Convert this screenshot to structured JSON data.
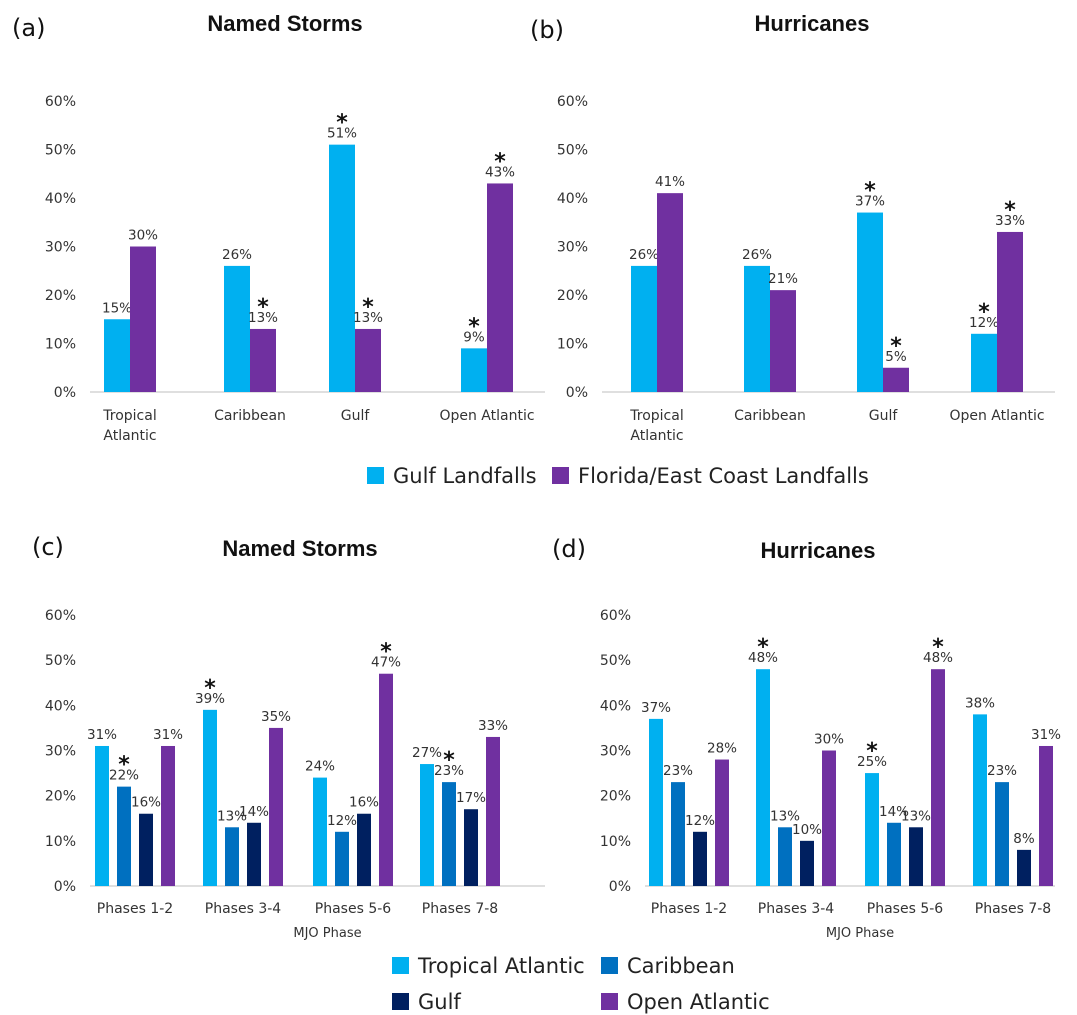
{
  "legend_top": [
    {
      "name": "Gulf Landfalls",
      "color": "#00B0F0"
    },
    {
      "name": "Florida/East Coast Landfalls",
      "color": "#7030A0"
    }
  ],
  "legend_bottom": [
    {
      "name": "Tropical Atlantic",
      "color": "#00B0F0"
    },
    {
      "name": "Caribbean",
      "color": "#0070C0"
    },
    {
      "name": "Gulf",
      "color": "#002060"
    },
    {
      "name": "Open Atlantic",
      "color": "#7030A0"
    }
  ],
  "chart_data": [
    {
      "panel": "(a)",
      "type": "bar",
      "title": "Named Storms",
      "xlabel": "",
      "ylabel": "",
      "ylim": [
        0,
        60
      ],
      "yticks": [
        "0%",
        "10%",
        "20%",
        "30%",
        "40%",
        "50%",
        "60%"
      ],
      "categories": [
        [
          "Tropical",
          "Atlantic"
        ],
        [
          "Caribbean"
        ],
        [
          "Gulf"
        ],
        [
          "Open Atlantic"
        ]
      ],
      "series": [
        {
          "name": "Gulf Landfalls",
          "color": "#00B0F0",
          "values": [
            15,
            26,
            51,
            9
          ],
          "labels": [
            "15%",
            "26%",
            "51%",
            "9%"
          ],
          "stars": [
            false,
            false,
            true,
            true
          ]
        },
        {
          "name": "Florida/East Coast Landfalls",
          "color": "#7030A0",
          "values": [
            30,
            13,
            13,
            43
          ],
          "labels": [
            "30%",
            "13%",
            "13%",
            "43%"
          ],
          "stars": [
            false,
            true,
            true,
            true
          ]
        }
      ]
    },
    {
      "panel": "(b)",
      "type": "bar",
      "title": "Hurricanes",
      "xlabel": "",
      "ylabel": "",
      "ylim": [
        0,
        60
      ],
      "yticks": [
        "0%",
        "10%",
        "20%",
        "30%",
        "40%",
        "50%",
        "60%"
      ],
      "categories": [
        [
          "Tropical",
          "Atlantic"
        ],
        [
          "Caribbean"
        ],
        [
          "Gulf"
        ],
        [
          "Open Atlantic"
        ]
      ],
      "series": [
        {
          "name": "Gulf Landfalls",
          "color": "#00B0F0",
          "values": [
            26,
            26,
            37,
            12
          ],
          "labels": [
            "26%",
            "26%",
            "37%",
            "12%"
          ],
          "stars": [
            false,
            false,
            true,
            true
          ]
        },
        {
          "name": "Florida/East Coast Landfalls",
          "color": "#7030A0",
          "values": [
            41,
            21,
            5,
            33
          ],
          "labels": [
            "41%",
            "21%",
            "5%",
            "33%"
          ],
          "stars": [
            false,
            false,
            true,
            true
          ]
        }
      ]
    },
    {
      "panel": "(c)",
      "type": "bar",
      "title": "Named Storms",
      "xlabel": "MJO Phase",
      "ylabel": "",
      "ylim": [
        0,
        60
      ],
      "yticks": [
        "0%",
        "10%",
        "20%",
        "30%",
        "40%",
        "50%",
        "60%"
      ],
      "categories": [
        [
          "Phases 1-2"
        ],
        [
          "Phases 3-4"
        ],
        [
          "Phases 5-6"
        ],
        [
          "Phases 7-8"
        ]
      ],
      "series": [
        {
          "name": "Tropical Atlantic",
          "color": "#00B0F0",
          "values": [
            31,
            39,
            24,
            27
          ],
          "labels": [
            "31%",
            "39%",
            "24%",
            "27%"
          ],
          "stars": [
            false,
            true,
            false,
            false
          ]
        },
        {
          "name": "Caribbean",
          "color": "#0070C0",
          "values": [
            22,
            13,
            12,
            23
          ],
          "labels": [
            "22%",
            "13%",
            "12%",
            "23%"
          ],
          "stars": [
            true,
            false,
            false,
            true
          ]
        },
        {
          "name": "Gulf",
          "color": "#002060",
          "values": [
            16,
            14,
            16,
            17
          ],
          "labels": [
            "16%",
            "14%",
            "16%",
            "17%"
          ],
          "stars": [
            false,
            false,
            false,
            false
          ]
        },
        {
          "name": "Open Atlantic",
          "color": "#7030A0",
          "values": [
            31,
            35,
            47,
            33
          ],
          "labels": [
            "31%",
            "35%",
            "47%",
            "33%"
          ],
          "stars": [
            false,
            false,
            true,
            false
          ]
        }
      ]
    },
    {
      "panel": "(d)",
      "type": "bar",
      "title": "Hurricanes",
      "xlabel": "MJO Phase",
      "ylabel": "",
      "ylim": [
        0,
        60
      ],
      "yticks": [
        "0%",
        "10%",
        "20%",
        "30%",
        "40%",
        "50%",
        "60%"
      ],
      "categories": [
        [
          "Phases 1-2"
        ],
        [
          "Phases 3-4"
        ],
        [
          "Phases 5-6"
        ],
        [
          "Phases 7-8"
        ]
      ],
      "series": [
        {
          "name": "Tropical Atlantic",
          "color": "#00B0F0",
          "values": [
            37,
            48,
            25,
            38
          ],
          "labels": [
            "37%",
            "48%",
            "25%",
            "38%"
          ],
          "stars": [
            false,
            true,
            true,
            false
          ]
        },
        {
          "name": "Caribbean",
          "color": "#0070C0",
          "values": [
            23,
            13,
            14,
            23
          ],
          "labels": [
            "23%",
            "13%",
            "14%",
            "23%"
          ],
          "stars": [
            false,
            false,
            false,
            false
          ]
        },
        {
          "name": "Gulf",
          "color": "#002060",
          "values": [
            12,
            10,
            13,
            8
          ],
          "labels": [
            "12%",
            "10%",
            "13%",
            "8%"
          ],
          "stars": [
            false,
            false,
            false,
            false
          ]
        },
        {
          "name": "Open Atlantic",
          "color": "#7030A0",
          "values": [
            28,
            30,
            48,
            31
          ],
          "labels": [
            "28%",
            "30%",
            "48%",
            "31%"
          ],
          "stars": [
            false,
            false,
            true,
            false
          ]
        }
      ]
    }
  ]
}
